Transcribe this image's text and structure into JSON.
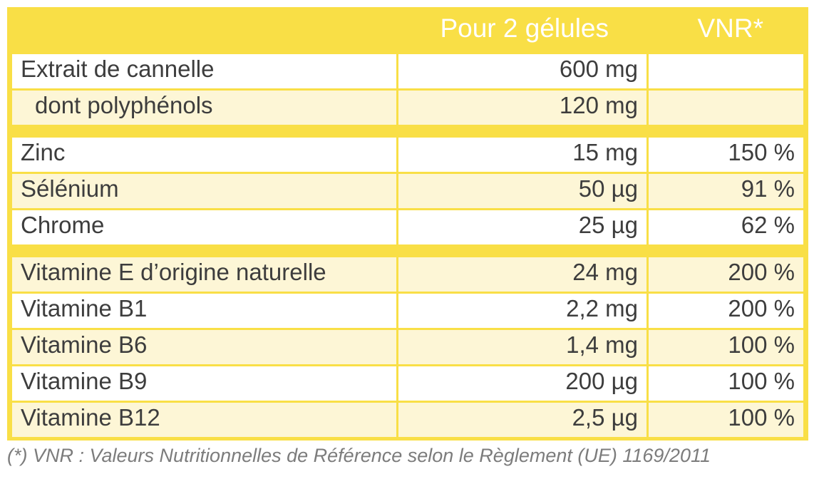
{
  "header": {
    "per_dose_label": "Pour 2 gélules",
    "vnr_label": "VNR*"
  },
  "rows": [
    {
      "name": "Extrait de cannelle",
      "qty": "600 mg",
      "vnr": ""
    },
    {
      "name": "dont polyphénols",
      "qty": "120 mg",
      "vnr": ""
    },
    {
      "name": "Zinc",
      "qty": "15 mg",
      "vnr": "150 %"
    },
    {
      "name": "Sélénium",
      "qty": "50 µg",
      "vnr": "91 %"
    },
    {
      "name": "Chrome",
      "qty": "25 µg",
      "vnr": "62 %"
    },
    {
      "name": "Vitamine E d’origine naturelle",
      "qty": "24 mg",
      "vnr": "200 %"
    },
    {
      "name": "Vitamine B1",
      "qty": "2,2 mg",
      "vnr": "200 %"
    },
    {
      "name": "Vitamine B6",
      "qty": "1,4 mg",
      "vnr": "100 %"
    },
    {
      "name": "Vitamine B9",
      "qty": "200 µg",
      "vnr": "100 %"
    },
    {
      "name": "Vitamine B12",
      "qty": "2,5 µg",
      "vnr": "100 %"
    }
  ],
  "footnote": "(*) VNR : Valeurs Nutritionnelles de Référence selon le Règlement (UE) 1169/2011",
  "colors": {
    "frame": "#f9df46",
    "row_white": "#ffffff",
    "row_cream": "#fdf6d6",
    "header_text": "#ffffff",
    "body_text": "#3d3d3d",
    "footnote_text": "#7c7c7c"
  }
}
